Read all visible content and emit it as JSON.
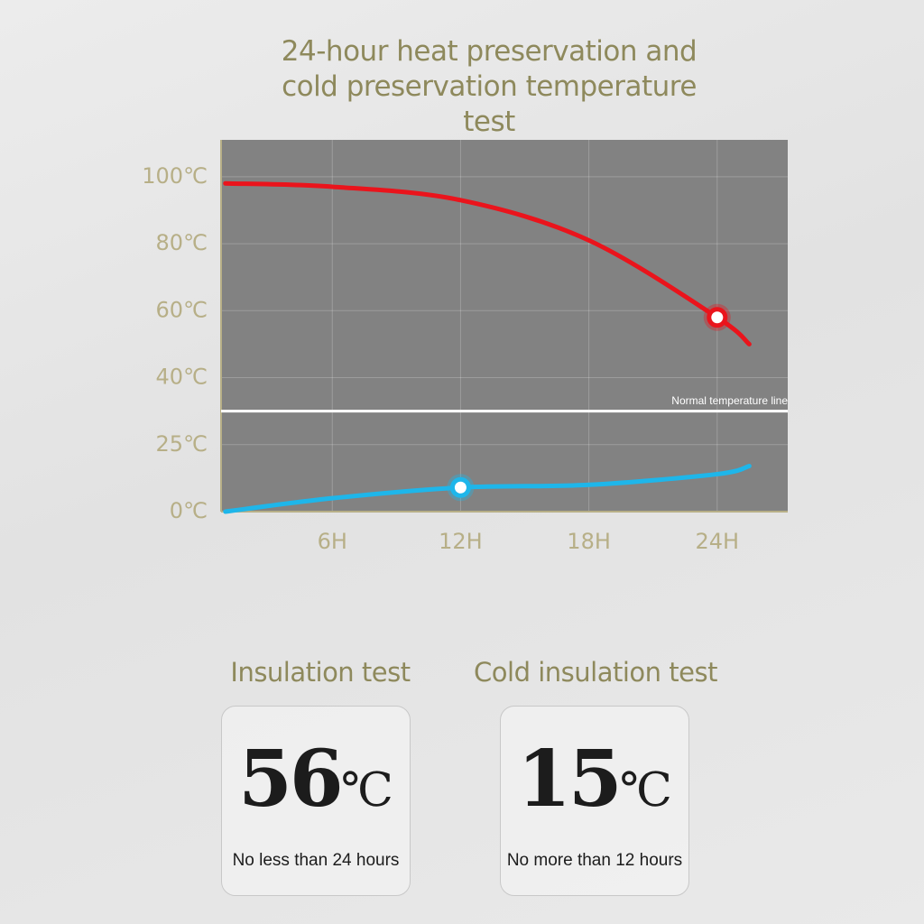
{
  "chart_data": {
    "type": "line",
    "title": "24-hour heat preservation and cold preservation temperature test",
    "x": [
      1,
      6,
      12,
      18,
      24,
      25.5
    ],
    "series": [
      {
        "name": "Heat preservation",
        "color": "#ea141c",
        "values": [
          98,
          97,
          93,
          81,
          58,
          50
        ],
        "marker_index": 4
      },
      {
        "name": "Cold preservation",
        "color": "#1eb6ea",
        "values": [
          0,
          5,
          9,
          10,
          14,
          17
        ],
        "marker_index": 2
      }
    ],
    "xlim": [
      0.8,
      27.3
    ],
    "xticks": [
      {
        "value": 6,
        "label": "6H"
      },
      {
        "value": 12,
        "label": "12H"
      },
      {
        "value": 18,
        "label": "18H"
      },
      {
        "value": 24,
        "label": "24H"
      }
    ],
    "ylim": [
      0,
      111
    ],
    "yticks": [
      {
        "value": 0,
        "label": "0℃"
      },
      {
        "value": 25,
        "label": "25℃"
      },
      {
        "value": 40,
        "label": "40℃"
      },
      {
        "value": 60,
        "label": "60℃"
      },
      {
        "value": 80,
        "label": "80℃"
      },
      {
        "value": 100,
        "label": "100℃"
      }
    ],
    "grid": true,
    "reference_line": {
      "value": 32.5,
      "label": "Normal temperature line"
    }
  },
  "cards": [
    {
      "heading": "Insulation test",
      "value": 56,
      "unit": "℃",
      "note": "No less than 24 hours"
    },
    {
      "heading": "Cold insulation test",
      "value": 15,
      "unit": "℃",
      "note": "No more than 12 hours"
    }
  ]
}
